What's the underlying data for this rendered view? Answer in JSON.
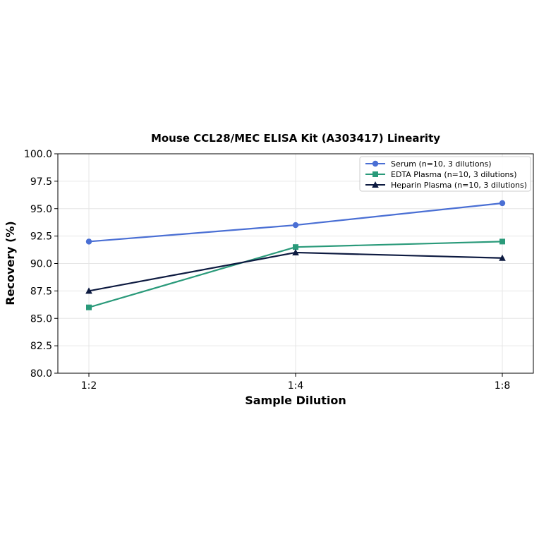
{
  "chart_data": {
    "type": "line",
    "title": "Mouse CCL28/MEC ELISA Kit (A303417) Linearity",
    "xlabel": "Sample Dilution",
    "ylabel": "Recovery (%)",
    "categories": [
      "1:2",
      "1:4",
      "1:8"
    ],
    "ylim": [
      80,
      100
    ],
    "yticks": [
      "80.0",
      "82.5",
      "85.0",
      "87.5",
      "90.0",
      "92.5",
      "95.0",
      "97.5",
      "100.0"
    ],
    "grid": true,
    "legend_position": "top-right",
    "series": [
      {
        "name": "Serum (n=10, 3 dilutions)",
        "values": [
          92.0,
          93.5,
          95.5
        ],
        "color": "#4a6fd4",
        "marker": "circle"
      },
      {
        "name": "EDTA Plasma (n=10, 3 dilutions)",
        "values": [
          86.0,
          91.5,
          92.0
        ],
        "color": "#2a9a7a",
        "marker": "square"
      },
      {
        "name": "Heparin Plasma (n=10, 3 dilutions)",
        "values": [
          87.5,
          91.0,
          90.5
        ],
        "color": "#0d1a40",
        "marker": "triangle"
      }
    ]
  }
}
